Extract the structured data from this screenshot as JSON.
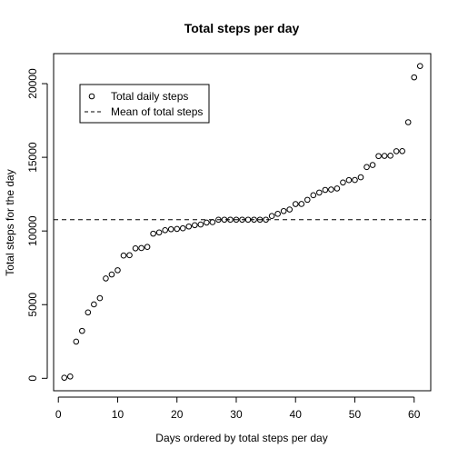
{
  "chart_data": {
    "type": "scatter",
    "title": "Total steps per day",
    "xlabel": "Days ordered by total steps per day",
    "ylabel": "Total steps for the day",
    "xlim": [
      -0.8,
      62.8
    ],
    "ylim": [
      -844,
      22038
    ],
    "xticks": [
      0,
      10,
      20,
      30,
      40,
      50,
      60
    ],
    "yticks": [
      0,
      5000,
      10000,
      15000,
      20000
    ],
    "legend": {
      "position": "top-left",
      "entries": [
        {
          "label": "Total daily steps",
          "style": "open-circle"
        },
        {
          "label": "Mean of total steps",
          "style": "dashed-line"
        }
      ]
    },
    "mean_line": 10766,
    "series": [
      {
        "name": "Total daily steps",
        "x": [
          1,
          2,
          3,
          4,
          5,
          6,
          7,
          8,
          9,
          10,
          11,
          12,
          13,
          14,
          15,
          16,
          17,
          18,
          19,
          20,
          21,
          22,
          23,
          24,
          25,
          26,
          27,
          28,
          29,
          30,
          31,
          32,
          33,
          34,
          35,
          36,
          37,
          38,
          39,
          40,
          41,
          42,
          43,
          44,
          45,
          46,
          47,
          48,
          49,
          50,
          51,
          52,
          53,
          54,
          55,
          56,
          57,
          58,
          59,
          60,
          61
        ],
        "y": [
          41,
          126,
          2492,
          3219,
          4472,
          5018,
          5441,
          6778,
          7047,
          7336,
          8334,
          8355,
          8821,
          8841,
          8918,
          9819,
          9900,
          10056,
          10119,
          10139,
          10183,
          10304,
          10395,
          10439,
          10571,
          10600,
          10765,
          10766,
          10766,
          10766,
          10766,
          10766,
          10766,
          10766,
          10766,
          11015,
          11162,
          11352,
          11458,
          11829,
          11834,
          12116,
          12426,
          12608,
          12787,
          12811,
          12883,
          13294,
          13452,
          13460,
          13646,
          14339,
          14478,
          15084,
          15098,
          15110,
          15414,
          15420,
          17382,
          20427,
          21194
        ]
      }
    ]
  }
}
